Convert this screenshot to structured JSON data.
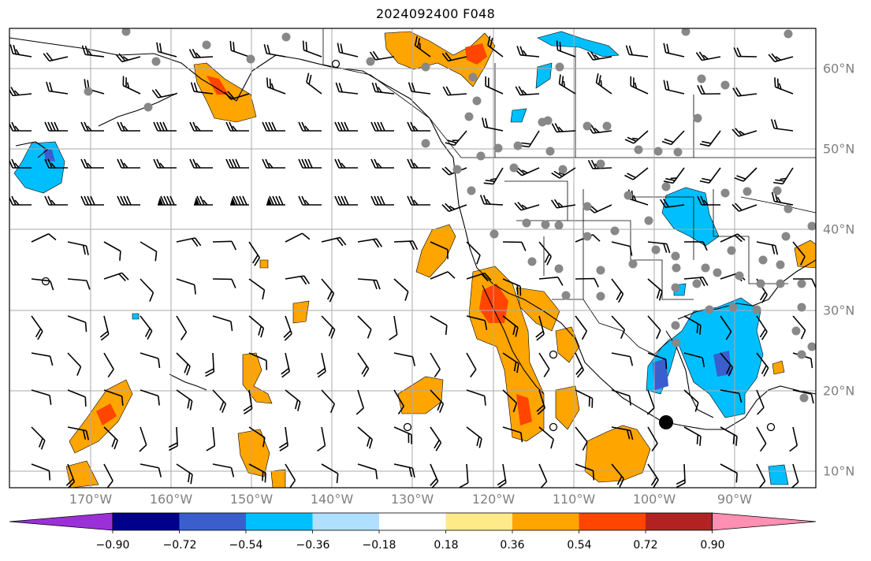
{
  "title": "2024092400 F048",
  "map": {
    "longitude_labels": [
      "170°W",
      "160°W",
      "150°W",
      "140°W",
      "130°W",
      "120°W",
      "110°W",
      "100°W",
      "90°W"
    ],
    "latitude_labels": [
      "60°N",
      "50°N",
      "40°N",
      "30°N",
      "20°N",
      "10°N"
    ]
  },
  "colorbar": {
    "ticks": [
      "−0.90",
      "−0.72",
      "−0.54",
      "−0.36",
      "−0.18",
      "0.18",
      "0.36",
      "0.54",
      "0.72",
      "0.90"
    ],
    "colors": [
      "#9b30d8",
      "#00008b",
      "#3a5fcd",
      "#00bfff",
      "#b0e0ff",
      "#ffffff",
      "#ffea8a",
      "#ffa500",
      "#ff4500",
      "#b22222",
      "#ff8fb3"
    ]
  },
  "colors": {
    "positive_light": "#ffa500",
    "positive_strong": "#ff4500",
    "negative_light": "#00bfff",
    "negative_strong": "#3a5fcd",
    "station_dots": "#888888",
    "grid": "#aaaaaa"
  }
}
